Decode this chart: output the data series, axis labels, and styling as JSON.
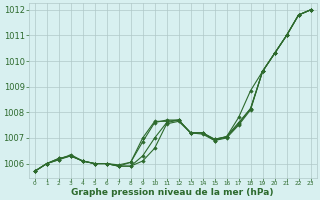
{
  "x": [
    0,
    1,
    2,
    3,
    4,
    5,
    6,
    7,
    8,
    9,
    10,
    11,
    12,
    13,
    14,
    15,
    16,
    17,
    18,
    19,
    20,
    21,
    22,
    23
  ],
  "line1": [
    1005.7,
    1006.0,
    1006.2,
    1006.3,
    1006.1,
    1006.0,
    1006.0,
    1005.9,
    1005.9,
    1006.1,
    1006.6,
    1007.55,
    1007.65,
    1007.2,
    1007.2,
    1006.9,
    1007.0,
    1007.5,
    1008.1,
    1009.6,
    1010.3,
    1011.0,
    1011.8,
    1012.0
  ],
  "line2": [
    1005.7,
    1006.0,
    1006.2,
    1006.3,
    1006.1,
    1006.0,
    1006.0,
    1005.9,
    1005.9,
    1006.3,
    1007.0,
    1007.6,
    1007.7,
    1007.2,
    1007.15,
    1006.9,
    1007.05,
    1007.6,
    1008.15,
    1009.6,
    1010.3,
    1011.0,
    1011.8,
    1012.0
  ],
  "line3": [
    1005.7,
    1006.0,
    1006.15,
    1006.35,
    1006.1,
    1006.0,
    1006.0,
    1005.95,
    1006.05,
    1006.85,
    1007.6,
    1007.7,
    1007.7,
    1007.2,
    1007.2,
    1006.95,
    1007.05,
    1007.8,
    1008.85,
    1009.6,
    1010.3,
    1011.0,
    1011.8,
    1012.0
  ],
  "line4": [
    1005.7,
    1006.0,
    1006.15,
    1006.3,
    1006.1,
    1006.0,
    1006.0,
    1005.9,
    1006.05,
    1007.0,
    1007.65,
    1007.65,
    1007.7,
    1007.2,
    1007.2,
    1006.95,
    1007.05,
    1007.55,
    1008.15,
    1009.6,
    1010.3,
    1011.0,
    1011.8,
    1012.0
  ],
  "ylim_min": 1005.45,
  "ylim_max": 1012.25,
  "yticks": [
    1006,
    1007,
    1008,
    1009,
    1010,
    1011,
    1012
  ],
  "xticks": [
    0,
    1,
    2,
    3,
    4,
    5,
    6,
    7,
    8,
    9,
    10,
    11,
    12,
    13,
    14,
    15,
    16,
    17,
    18,
    19,
    20,
    21,
    22,
    23
  ],
  "xlabel": "Graphe pression niveau de la mer (hPa)",
  "line_color": "#2d6a2d",
  "marker": "D",
  "marker_size": 1.8,
  "bg_color": "#d8f0f0",
  "grid_color": "#b0c8c8",
  "linewidth": 0.8,
  "xlabel_fontsize": 6.5,
  "ytick_fontsize": 6,
  "xtick_fontsize": 4.2
}
